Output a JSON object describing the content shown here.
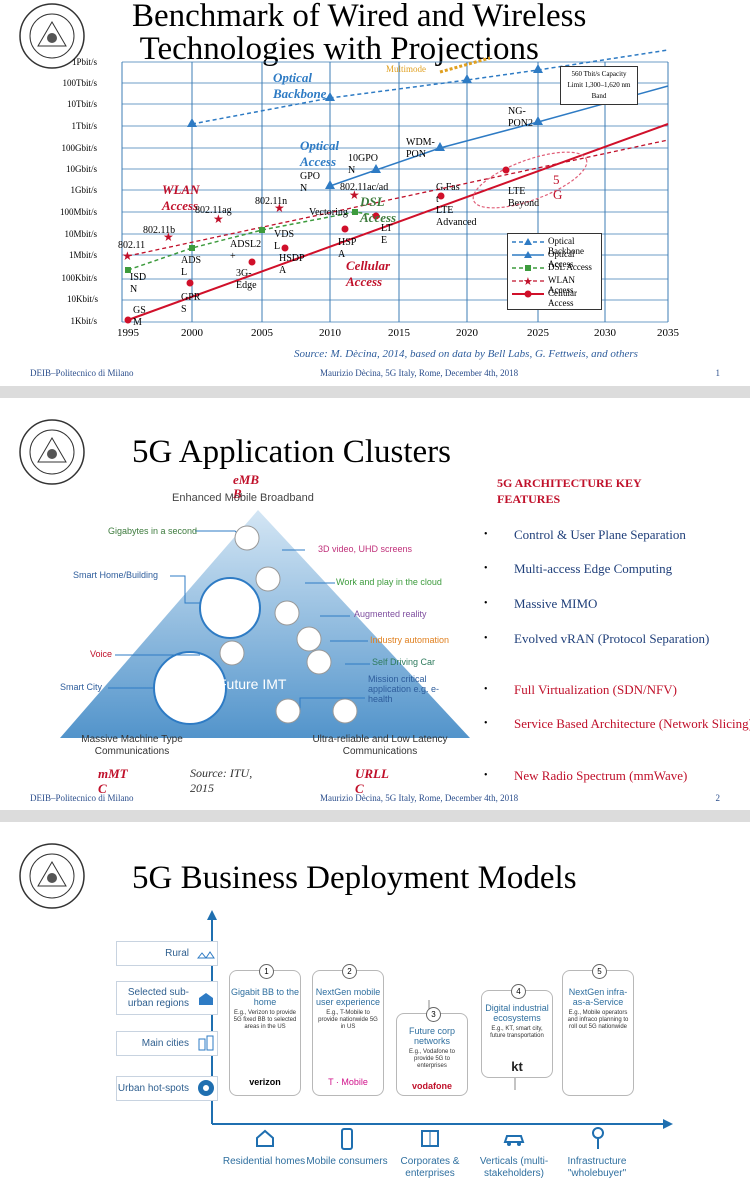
{
  "slide1": {
    "title": "Benchmark of Wired and Wireless\n Technologies with Projections",
    "y_ticks": [
      "1Pbit/s",
      "100Tbit/s",
      "10Tbit/s",
      "1Tbit/s",
      "100Gbit/s",
      "10Gbit/s",
      "1Gbit/s",
      "100Mbit/s",
      "10Mbit/s",
      "1Mbit/s",
      "100Kbit/s",
      "10Kbit/s",
      "1Kbit/s"
    ],
    "x_ticks": [
      "1995",
      "2000",
      "2005",
      "2010",
      "2015",
      "2020",
      "2025",
      "2030",
      "2035"
    ],
    "labels": {
      "optical_backbone": "Optical Backbone",
      "optical_access": "Optical Access",
      "wlan_access": "WLAN Access",
      "dsl_access": "DSL Access",
      "cellular_access": "Cellular Access",
      "five_g": "5 G",
      "multimode": "Multimode",
      "capacity_limit": "560 Tbit/s Capacity Limit 1,300–1,620 nm Band",
      "ngpon2": "NG-PON2",
      "wdm_pon": "WDM-PON",
      "tengpon": "10GPO N",
      "gpon": "GPO N",
      "ac_ad": "802.11ac/ad",
      "vectoring": "Vectoring",
      "g_fast": "G.Fas t",
      "lte_beyond": "LTE Beyond",
      "lte_advanced": "LTE Advanced",
      "lte": "LT E",
      "hspa": "HSP A",
      "hsdpa": "HSDP A",
      "vdsl": "VDS L",
      "adsl2": "ADSL2 +",
      "three_g_edge": "3G- Edge",
      "adsl": "ADS L",
      "isdn": "ISD N",
      "gprs": "GPR S",
      "gsm": "GS M",
      "n80211": "802.11",
      "n80211b": "802.11b",
      "n80211ag": "802.11ag",
      "n80211n": "802.11n"
    },
    "legend": [
      {
        "label": "Optical Backbone",
        "color": "#2e7bc4"
      },
      {
        "label": "Optical Access",
        "color": "#2e7bc4"
      },
      {
        "label": "DSL Access",
        "color": "#3d9b3d"
      },
      {
        "label": "WLAN Access",
        "color": "#c0102a"
      },
      {
        "label": "Cellular Access",
        "color": "#d0102a"
      }
    ],
    "source": "Source: M. Dècina, 2014, based on data by Bell Labs, G. Fettweis, and others",
    "footer_left": "DEIB–Politecnico di Milano",
    "footer_center": "Maurizio Dècina, 5G Italy, Rome, December 4th, 2018",
    "page": "1"
  },
  "slide2": {
    "title": "5G Application Clusters",
    "triangle_top": "Enhanced Mobile Broadband",
    "embb": "eMB B",
    "mmtc": "mMT C",
    "urllc": "URLL C",
    "center": "Future IMT",
    "left_labels": [
      "Gigabytes in a second",
      "Smart Home/Building",
      "Voice",
      "Smart City"
    ],
    "right_labels": [
      "3D video, UHD screens",
      "Work and play in the cloud",
      "Augmented reality",
      "Industry automation",
      "Self Driving Car",
      "Mission critical application e.g. e-health"
    ],
    "bottom_left": "Massive Machine Type Communications",
    "bottom_right": "Ultra-reliable and Low Latency Communications",
    "source": "Source: ITU, 2015",
    "features_title": "5G ARCHITECTURE KEY FEATURES",
    "features": [
      {
        "text": "Control & User Plane Separation",
        "color": "#1f3f7a"
      },
      {
        "text": "Multi-access Edge Computing",
        "color": "#1f3f7a"
      },
      {
        "text": "Massive MIMO",
        "color": "#1f3f7a"
      },
      {
        "text": "Evolved vRAN (Protocol Separation)",
        "color": "#1f3f7a"
      },
      {
        "text": "Full Virtualization (SDN/NFV)",
        "color": "#c0102a"
      },
      {
        "text": "Service Based Architecture (Network Slicing)",
        "color": "#c0102a"
      },
      {
        "text": "New Radio Spectrum (mmWave)",
        "color": "#c0102a"
      }
    ],
    "footer_left": "DEIB–Politecnico di Milano",
    "footer_center": "Maurizio Dècina, 5G Italy, Rome, December 4th, 2018",
    "page": "2"
  },
  "slide3": {
    "title": "5G Business Deployment Models",
    "rows": [
      "Rural",
      "Selected sub-urban regions",
      "Main cities",
      "Urban hot-spots"
    ],
    "columns": [
      {
        "num": "1",
        "head": "Gigabit BB to the home",
        "desc": "E.g., Verizon to provide 5G fixed BB to selected areas in the US",
        "brand": "verizon"
      },
      {
        "num": "2",
        "head": "NextGen mobile user experience",
        "desc": "E.g., T-Mobile to provide nationwide 5G in US",
        "brand": "T · Mobile"
      },
      {
        "num": "3",
        "head": "Future corp networks",
        "desc": "E.g., Vodafone to provide 5G to enterprises",
        "brand": "vodafone"
      },
      {
        "num": "4",
        "head": "Digital industrial ecosystems",
        "desc": "E.g., KT, smart city, future transportation",
        "brand": "kt"
      },
      {
        "num": "5",
        "head": "NextGen infra-as-a-Service",
        "desc": "E.g., Mobile operators and infraco planning to roll out 5G nationwide",
        "brand": ""
      }
    ],
    "bottom": [
      "Residential homes",
      "Mobile consumers",
      "Corporates & enterprises",
      "Verticals (multi-stakeholders)",
      "Infrastructure \"wholebuyer\""
    ]
  }
}
